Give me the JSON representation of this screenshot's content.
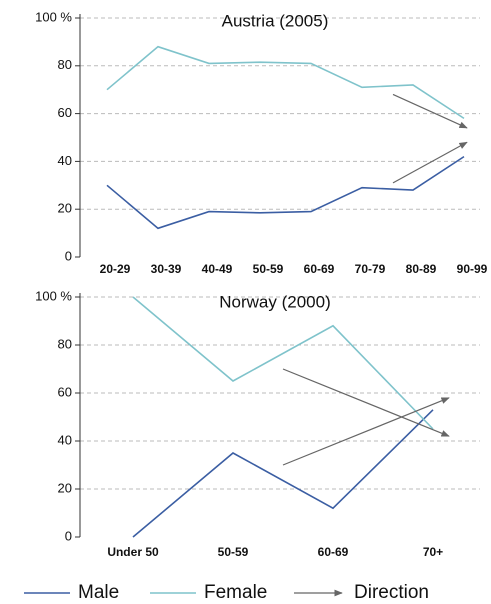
{
  "chart_data": [
    {
      "type": "line",
      "title": "Austria (2005)",
      "categories": [
        "20-29",
        "30-39",
        "40-49",
        "50-59",
        "60-69",
        "70-79",
        "80-89",
        "90-99"
      ],
      "series": [
        {
          "name": "Male",
          "color": "#3b5ea3",
          "values": [
            30,
            12,
            19,
            18.5,
            19,
            29,
            28,
            42
          ]
        },
        {
          "name": "Female",
          "color": "#7fc3cb",
          "values": [
            70,
            88,
            81,
            81.5,
            81,
            71,
            72,
            58
          ]
        }
      ],
      "arrows": [
        [
          68,
          54
        ],
        [
          31,
          48
        ]
      ],
      "ylim": [
        0,
        100
      ],
      "yticks": [
        0,
        20,
        40,
        60,
        80,
        {
          "value": 100,
          "label": "100 %"
        }
      ],
      "grid": true
    },
    {
      "type": "line",
      "title": "Norway (2000)",
      "categories": [
        "Under 50",
        "50-59",
        "60-69",
        "70+"
      ],
      "series": [
        {
          "name": "Male",
          "color": "#3b5ea3",
          "values": [
            0,
            35,
            12,
            53
          ]
        },
        {
          "name": "Female",
          "color": "#7fc3cb",
          "values": [
            100,
            65,
            88,
            45
          ]
        }
      ],
      "arrows": [
        [
          70,
          42
        ],
        [
          30,
          58
        ]
      ],
      "ylim": [
        0,
        100
      ],
      "yticks": [
        0,
        20,
        40,
        60,
        80,
        {
          "value": 100,
          "label": "100 %"
        }
      ],
      "grid": true
    }
  ],
  "direction_label": "Direction"
}
